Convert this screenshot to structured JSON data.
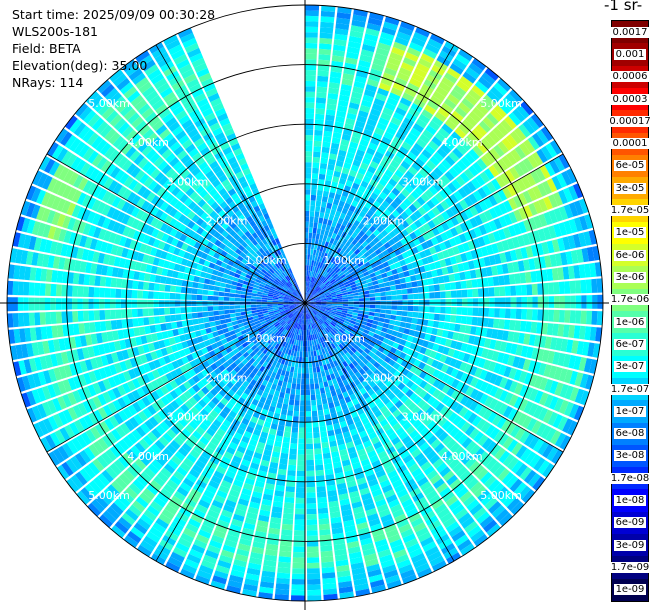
{
  "info": {
    "start_time": "Start time: 2025/09/09 00:30:28",
    "instrument": "WLS200s-181",
    "field": "Field: BETA",
    "elevation": "Elevation(deg): 35.00",
    "nrays": "NRays: 114"
  },
  "colorbar": {
    "title_fragment": "-1 sr-",
    "levels": [
      "0.0017",
      "0.001",
      "0.0006",
      "0.0003",
      "0.00017",
      "0.0001",
      "6e-05",
      "3e-05",
      "1.7e-05",
      "1e-05",
      "6e-06",
      "3e-06",
      "1.7e-06",
      "1e-06",
      "6e-07",
      "3e-07",
      "1.7e-07",
      "1e-07",
      "6e-08",
      "3e-08",
      "1.7e-08",
      "1e-08",
      "6e-09",
      "3e-09",
      "1.7e-09",
      "1e-09"
    ],
    "colors": [
      "#7f0000",
      "#a00000",
      "#cc0000",
      "#ff0000",
      "#ff2a00",
      "#ff5500",
      "#ff8000",
      "#ffaa00",
      "#ffd400",
      "#ffff00",
      "#d4ff2a",
      "#aaff55",
      "#80ff80",
      "#55ffaa",
      "#2affd4",
      "#00ffff",
      "#00d4ff",
      "#00aaff",
      "#0080ff",
      "#0055ff",
      "#002aff",
      "#0000ff",
      "#0000d4",
      "#0000aa",
      "#000080",
      "#000050"
    ]
  },
  "chart_data": {
    "type": "heatmap",
    "projection": "polar-ppi",
    "field": "BETA",
    "elevation_deg": 35.0,
    "nrays": 114,
    "range_unit": "km",
    "max_range_km": 5.0,
    "missing_sector_deg": [
      338,
      360
    ],
    "range_ring_labels": [
      {
        "range_km": 1.0,
        "labels": [
          "1.00km",
          "1.00km",
          "1.00km",
          "1.00km"
        ]
      },
      {
        "range_km": 2.0,
        "labels": [
          "2.00km",
          "2.00km",
          "2.00km",
          "2.00km"
        ]
      },
      {
        "range_km": 3.0,
        "labels": [
          "3.00km",
          "3.00km",
          "3.00km",
          "3.00km"
        ]
      },
      {
        "range_km": 4.0,
        "labels": [
          "4.00km",
          "4.00km",
          "4.00km",
          "4.00km"
        ]
      },
      {
        "range_km": 5.0,
        "labels": [
          "5.00km",
          "5.00km",
          "5.00km",
          "5.00km"
        ]
      }
    ],
    "spokes_deg": [
      0,
      30,
      60,
      90,
      120,
      150,
      180,
      210,
      240,
      270,
      300,
      330
    ],
    "color_scale": "log",
    "value_range": [
      1e-09,
      0.0017
    ],
    "radial_profile": [
      {
        "range_km": 0.2,
        "value": 3e-08
      },
      {
        "range_km": 0.8,
        "value": 6e-08
      },
      {
        "range_km": 1.5,
        "value": 1e-07
      },
      {
        "range_km": 2.5,
        "value": 3e-07
      },
      {
        "range_km": 3.5,
        "value": 3e-07
      },
      {
        "range_km": 4.3,
        "value": 6e-07
      },
      {
        "range_km": 4.8,
        "value": 1.7e-07
      },
      {
        "range_km": 5.0,
        "value": 6e-08
      }
    ],
    "enhanced_regions": [
      {
        "azimuth_deg": [
          20,
          70
        ],
        "range_km": [
          3.8,
          4.6
        ],
        "value": 3e-06
      },
      {
        "azimuth_deg": [
          285,
          300
        ],
        "range_km": [
          4.2,
          4.7
        ],
        "value": 1.7e-06
      },
      {
        "azimuth_deg": [
          310,
          330
        ],
        "range_km": [
          4.0,
          4.6
        ],
        "value": 6e-07
      },
      {
        "azimuth_deg": [
          90,
          120
        ],
        "range_km": [
          4.0,
          4.8
        ],
        "value": 6e-07
      }
    ]
  }
}
